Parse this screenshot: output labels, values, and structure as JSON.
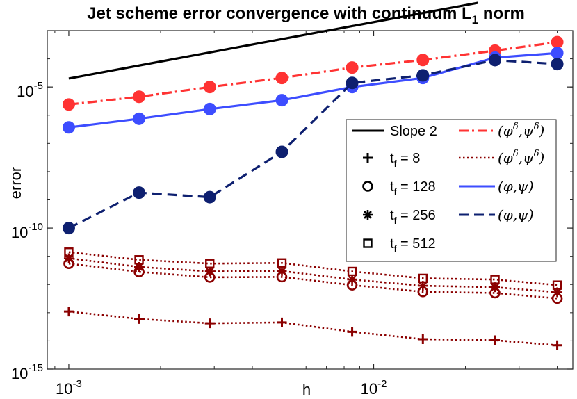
{
  "chart_data": {
    "type": "line",
    "title": "Jet scheme error convergence with continuum L",
    "title_sub": "1",
    "title_tail": " norm",
    "xlabel": "h",
    "ylabel": "error",
    "xscale": "log",
    "yscale": "log",
    "xlim": [
      0.00085,
      0.045
    ],
    "ylim": [
      1e-15,
      0.001
    ],
    "x_ticks": [
      {
        "value": 0.001,
        "base": "10",
        "exp": "-3"
      },
      {
        "value": 0.01,
        "base": "10",
        "exp": "-2"
      }
    ],
    "y_ticks": [
      {
        "value": 1e-05,
        "base": "10",
        "exp": "-5"
      },
      {
        "value": 1e-10,
        "base": "10",
        "exp": "-10"
      },
      {
        "value": 1e-15,
        "base": "10",
        "exp": "-15"
      }
    ],
    "x": [
      0.001,
      0.0017,
      0.0029,
      0.005,
      0.0085,
      0.0145,
      0.025,
      0.04
    ],
    "series": [
      {
        "name": "(φ^δ, ψ^δ) dash-dot red",
        "color": "#ff3333",
        "style": "dashdot",
        "marker": "filled-circle",
        "values": [
          2.4e-06,
          4.5e-06,
          1e-05,
          2.1e-05,
          4.9e-05,
          9.1e-05,
          0.000195,
          0.00039
        ]
      },
      {
        "name": "(φ, ψ) solid blue",
        "color": "#3d4dff",
        "style": "solid",
        "marker": "filled-circle",
        "values": [
          3.7e-07,
          7.5e-07,
          1.65e-06,
          3.4e-06,
          1e-05,
          2.1e-05,
          0.00011,
          0.00016
        ]
      },
      {
        "name": "(φ, ψ) dashed navy",
        "color": "#0e2070",
        "style": "dashed",
        "marker": "filled-circle",
        "values": [
          1e-10,
          1.8e-09,
          1.25e-09,
          5e-08,
          1.4e-05,
          2.6e-05,
          9e-05,
          6.5e-05
        ]
      },
      {
        "name": "t_f = 8 (δ) dotted",
        "color": "#8b0000",
        "style": "dotted",
        "marker": "plus",
        "values": [
          1.1e-13,
          6e-14,
          4.2e-14,
          4.5e-14,
          2.1e-14,
          1.15e-14,
          1.05e-14,
          7e-15
        ]
      },
      {
        "name": "t_f = 128 (δ) dotted",
        "color": "#8b0000",
        "style": "dotted",
        "marker": "circle",
        "values": [
          5.5e-12,
          2.8e-12,
          1.8e-12,
          1.85e-12,
          9.5e-13,
          5.5e-13,
          5e-13,
          3.2e-13
        ]
      },
      {
        "name": "t_f = 256 (δ) dotted",
        "color": "#8b0000",
        "style": "dotted",
        "marker": "star",
        "values": [
          8.5e-12,
          4.2e-12,
          2.9e-12,
          3e-12,
          1.5e-12,
          9e-13,
          8e-13,
          5.3e-13
        ]
      },
      {
        "name": "t_f = 512 (δ) dotted",
        "color": "#8b0000",
        "style": "dotted",
        "marker": "square",
        "values": [
          1.4e-11,
          7.5e-12,
          5.5e-12,
          5.8e-12,
          2.9e-12,
          1.65e-12,
          1.5e-12,
          9.5e-13
        ]
      },
      {
        "name": "Slope 2 reference",
        "color": "#000000",
        "style": "solid",
        "marker": "none",
        "x": [
          0.001,
          0.022
        ],
        "values": [
          2e-05,
          0.0097
        ]
      }
    ],
    "legend": {
      "placement": "center-right",
      "left_entries": [
        {
          "label": "Slope 2",
          "symbol": "line",
          "color": "#000000"
        },
        {
          "label": "t",
          "sub": "f",
          "tail": " = 8",
          "symbol": "plus",
          "color": "#000000"
        },
        {
          "label": "t",
          "sub": "f",
          "tail": " = 128",
          "symbol": "circle",
          "color": "#000000"
        },
        {
          "label": "t",
          "sub": "f",
          "tail": " = 256",
          "symbol": "star",
          "color": "#000000"
        },
        {
          "label": "t",
          "sub": "f",
          "tail": " = 512",
          "symbol": "square",
          "color": "#000000"
        }
      ],
      "right_entries": [
        {
          "a": "(φ",
          "a_sup": "δ",
          "sep": ",ψ",
          "b_sup": "δ",
          "close": ")",
          "style": "dashdot",
          "color": "#ff3333"
        },
        {
          "a": "(φ",
          "a_sup": "δ",
          "sep": ",ψ",
          "b_sup": "δ",
          "close": ")",
          "style": "dotted",
          "color": "#8b0000"
        },
        {
          "a": "(φ",
          "a_sup": "",
          "sep": ",ψ",
          "b_sup": "",
          "close": ")",
          "style": "solid",
          "color": "#3d4dff"
        },
        {
          "a": "(φ",
          "a_sup": "",
          "sep": ",ψ",
          "b_sup": "",
          "close": ")",
          "style": "dashed",
          "color": "#0e2070"
        }
      ]
    }
  }
}
